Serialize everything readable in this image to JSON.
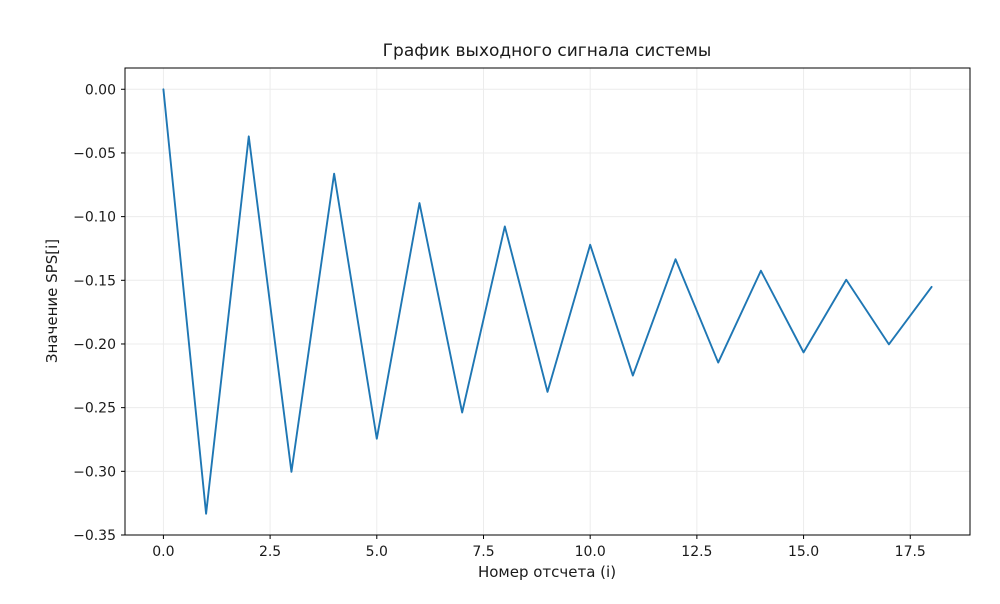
{
  "chart_data": {
    "type": "line",
    "title": "График выходного сигнала системы",
    "xlabel": "Номер отсчета (i)",
    "ylabel": "Значение SPS[i]",
    "x": [
      0,
      1,
      2,
      3,
      4,
      5,
      6,
      7,
      8,
      9,
      10,
      11,
      12,
      13,
      14,
      15,
      16,
      17,
      18
    ],
    "y": [
      0.0,
      -0.3333,
      -0.037,
      -0.3004,
      -0.0663,
      -0.2744,
      -0.0894,
      -0.2538,
      -0.1077,
      -0.2376,
      -0.1221,
      -0.2248,
      -0.1335,
      -0.2146,
      -0.1425,
      -0.2066,
      -0.1496,
      -0.2003,
      -0.1552
    ],
    "xlim": [
      -0.9,
      18.9
    ],
    "ylim": [
      -0.35,
      0.0167
    ],
    "xticks": {
      "values": [
        0,
        2.5,
        5,
        7.5,
        10,
        12.5,
        15,
        17.5
      ],
      "labels": [
        "0.0",
        "2.5",
        "5.0",
        "7.5",
        "10.0",
        "12.5",
        "15.0",
        "17.5"
      ]
    },
    "yticks": {
      "values": [
        0,
        -0.05,
        -0.1,
        -0.15,
        -0.2,
        -0.25,
        -0.3,
        -0.35
      ],
      "labels": [
        "0.00",
        "−0.05",
        "−0.10",
        "−0.15",
        "−0.20",
        "−0.25",
        "−0.30",
        "−0.35"
      ]
    },
    "line_color": "#1f77b4",
    "grid": true,
    "legend_position": "none"
  }
}
